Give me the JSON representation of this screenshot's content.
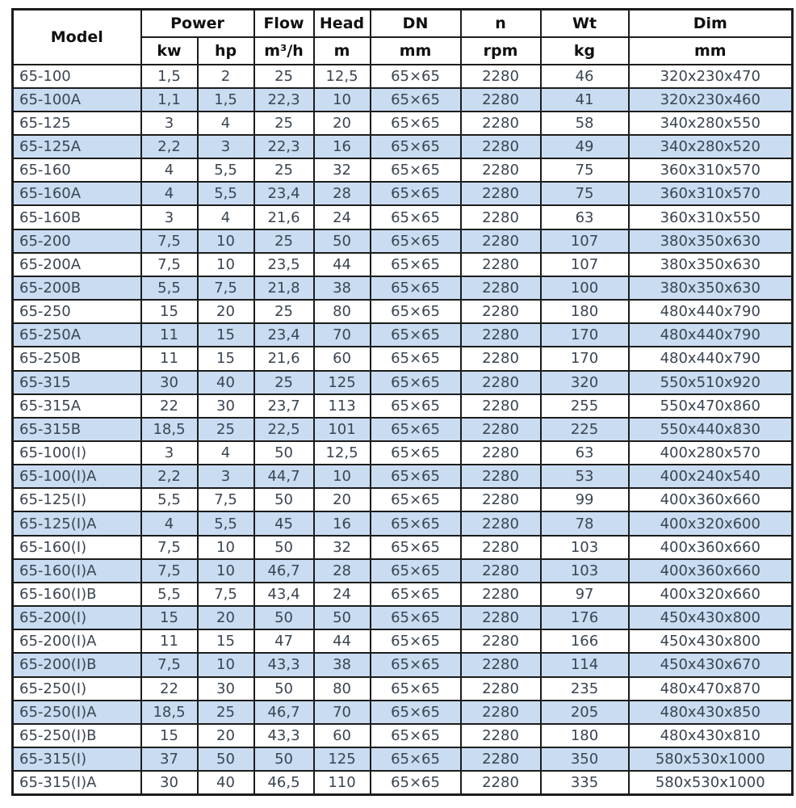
{
  "table": {
    "header": {
      "model": "Model",
      "power": "Power",
      "kw": "kw",
      "hp": "hp",
      "flow": "Flow",
      "flow_unit": "m³/h",
      "head": "Head",
      "head_unit": "m",
      "dn": "DN",
      "dn_unit": "mm",
      "n": "n",
      "n_unit": "rpm",
      "wt": "Wt",
      "wt_unit": "kg",
      "dim": "Dim",
      "dim_unit": "mm"
    },
    "rows": [
      [
        "65-100",
        "1,5",
        "2",
        "25",
        "12,5",
        "65×65",
        "2280",
        "46",
        "320x230x470"
      ],
      [
        "65-100A",
        "1,1",
        "1,5",
        "22,3",
        "10",
        "65×65",
        "2280",
        "41",
        "320x230x460"
      ],
      [
        "65-125",
        "3",
        "4",
        "25",
        "20",
        "65×65",
        "2280",
        "58",
        "340x280x550"
      ],
      [
        "65-125A",
        "2,2",
        "3",
        "22,3",
        "16",
        "65×65",
        "2280",
        "49",
        "340x280x520"
      ],
      [
        "65-160",
        "4",
        "5,5",
        "25",
        "32",
        "65×65",
        "2280",
        "75",
        "360x310x570"
      ],
      [
        "65-160A",
        "4",
        "5,5",
        "23,4",
        "28",
        "65×65",
        "2280",
        "75",
        "360x310x570"
      ],
      [
        "65-160B",
        "3",
        "4",
        "21,6",
        "24",
        "65×65",
        "2280",
        "63",
        "360x310x550"
      ],
      [
        "65-200",
        "7,5",
        "10",
        "25",
        "50",
        "65×65",
        "2280",
        "107",
        "380x350x630"
      ],
      [
        "65-200A",
        "7,5",
        "10",
        "23,5",
        "44",
        "65×65",
        "2280",
        "107",
        "380x350x630"
      ],
      [
        "65-200B",
        "5,5",
        "7,5",
        "21,8",
        "38",
        "65×65",
        "2280",
        "100",
        "380x350x630"
      ],
      [
        "65-250",
        "15",
        "20",
        "25",
        "80",
        "65×65",
        "2280",
        "180",
        "480x440x790"
      ],
      [
        "65-250A",
        "11",
        "15",
        "23,4",
        "70",
        "65×65",
        "2280",
        "170",
        "480x440x790"
      ],
      [
        "65-250B",
        "11",
        "15",
        "21,6",
        "60",
        "65×65",
        "2280",
        "170",
        "480x440x790"
      ],
      [
        "65-315",
        "30",
        "40",
        "25",
        "125",
        "65×65",
        "2280",
        "320",
        "550x510x920"
      ],
      [
        "65-315A",
        "22",
        "30",
        "23,7",
        "113",
        "65×65",
        "2280",
        "255",
        "550x470x860"
      ],
      [
        "65-315B",
        "18,5",
        "25",
        "22,5",
        "101",
        "65×65",
        "2280",
        "225",
        "550x440x830"
      ],
      [
        "65-100(I)",
        "3",
        "4",
        "50",
        "12,5",
        "65×65",
        "2280",
        "63",
        "400x280x570"
      ],
      [
        "65-100(I)A",
        "2,2",
        "3",
        "44,7",
        "10",
        "65×65",
        "2280",
        "53",
        "400x240x540"
      ],
      [
        "65-125(I)",
        "5,5",
        "7,5",
        "50",
        "20",
        "65×65",
        "2280",
        "99",
        "400x360x660"
      ],
      [
        "65-125(I)A",
        "4",
        "5,5",
        "45",
        "16",
        "65×65",
        "2280",
        "78",
        "400x320x600"
      ],
      [
        "65-160(I)",
        "7,5",
        "10",
        "50",
        "32",
        "65×65",
        "2280",
        "103",
        "400x360x660"
      ],
      [
        "65-160(I)A",
        "7,5",
        "10",
        "46,7",
        "28",
        "65×65",
        "2280",
        "103",
        "400x360x660"
      ],
      [
        "65-160(I)B",
        "5,5",
        "7,5",
        "43,4",
        "24",
        "65×65",
        "2280",
        "97",
        "400x320x660"
      ],
      [
        "65-200(I)",
        "15",
        "20",
        "50",
        "50",
        "65×65",
        "2280",
        "176",
        "450x430x800"
      ],
      [
        "65-200(I)A",
        "11",
        "15",
        "47",
        "44",
        "65×65",
        "2280",
        "166",
        "450x430x800"
      ],
      [
        "65-200(I)B",
        "7,5",
        "10",
        "43,3",
        "38",
        "65×65",
        "2280",
        "114",
        "450x430x670"
      ],
      [
        "65-250(I)",
        "22",
        "30",
        "50",
        "80",
        "65×65",
        "2280",
        "235",
        "480x470x870"
      ],
      [
        "65-250(I)A",
        "18,5",
        "25",
        "46,7",
        "70",
        "65×65",
        "2280",
        "205",
        "480x430x850"
      ],
      [
        "65-250(I)B",
        "15",
        "20",
        "43,3",
        "60",
        "65×65",
        "2280",
        "180",
        "480x430x810"
      ],
      [
        "65-315(I)",
        "37",
        "50",
        "50",
        "125",
        "65×65",
        "2280",
        "350",
        "580x530x1000"
      ],
      [
        "65-315(I)A",
        "30",
        "40",
        "46,5",
        "110",
        "65×65",
        "2280",
        "335",
        "580x530x1000"
      ]
    ]
  },
  "colors": {
    "row_stripe": "#c9dcf1",
    "row_plain": "#ffffff",
    "border": "#1c1c1c",
    "header_text": "#101010",
    "data_text": "#3a4552"
  }
}
